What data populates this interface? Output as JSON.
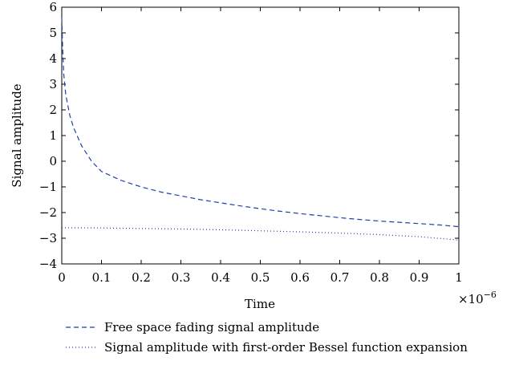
{
  "chart_data": {
    "type": "line",
    "title": "",
    "xlabel": "Time",
    "ylabel": "Signal amplitude",
    "x_multiplier": "×10",
    "x_multiplier_exponent": "−6",
    "xlim": [
      0,
      1
    ],
    "ylim": [
      -4,
      6
    ],
    "x_ticks": [
      0,
      0.1,
      0.2,
      0.3,
      0.4,
      0.5,
      0.6,
      0.7,
      0.8,
      0.9,
      1
    ],
    "x_tick_labels": [
      "0",
      "0.1",
      "0.2",
      "0.3",
      "0.4",
      "0.5",
      "0.6",
      "0.7",
      "0.8",
      "0.9",
      "1"
    ],
    "y_ticks": [
      -4,
      -3,
      -2,
      -1,
      0,
      1,
      2,
      3,
      4,
      5,
      6
    ],
    "y_tick_labels": [
      "−4",
      "−3",
      "−2",
      "−1",
      "0",
      "1",
      "2",
      "3",
      "4",
      "5",
      "6"
    ],
    "grid": false,
    "legend_position": "bottom",
    "series": [
      {
        "name": "Free space fading signal amplitude",
        "style": "dashed",
        "color": "#1f3fa8",
        "x": [
          0,
          0.002,
          0.005,
          0.01,
          0.02,
          0.03,
          0.05,
          0.075,
          0.1,
          0.15,
          0.2,
          0.25,
          0.3,
          0.35,
          0.4,
          0.45,
          0.5,
          0.55,
          0.6,
          0.65,
          0.7,
          0.75,
          0.8,
          0.85,
          0.9,
          0.95,
          1.0
        ],
        "y": [
          5.6,
          4.5,
          3.4,
          2.6,
          1.8,
          1.3,
          0.6,
          0.0,
          -0.4,
          -0.75,
          -1.0,
          -1.2,
          -1.35,
          -1.5,
          -1.62,
          -1.74,
          -1.85,
          -1.95,
          -2.04,
          -2.12,
          -2.2,
          -2.27,
          -2.33,
          -2.38,
          -2.43,
          -2.48,
          -2.55
        ]
      },
      {
        "name": "Signal amplitude with first-order Bessel function expansion",
        "style": "dotted",
        "color": "#1f3fa8",
        "x": [
          0,
          0.1,
          0.2,
          0.3,
          0.4,
          0.5,
          0.6,
          0.7,
          0.8,
          0.9,
          1.0
        ],
        "y": [
          -2.59,
          -2.6,
          -2.62,
          -2.64,
          -2.67,
          -2.71,
          -2.75,
          -2.8,
          -2.86,
          -2.94,
          -3.07
        ]
      }
    ]
  }
}
